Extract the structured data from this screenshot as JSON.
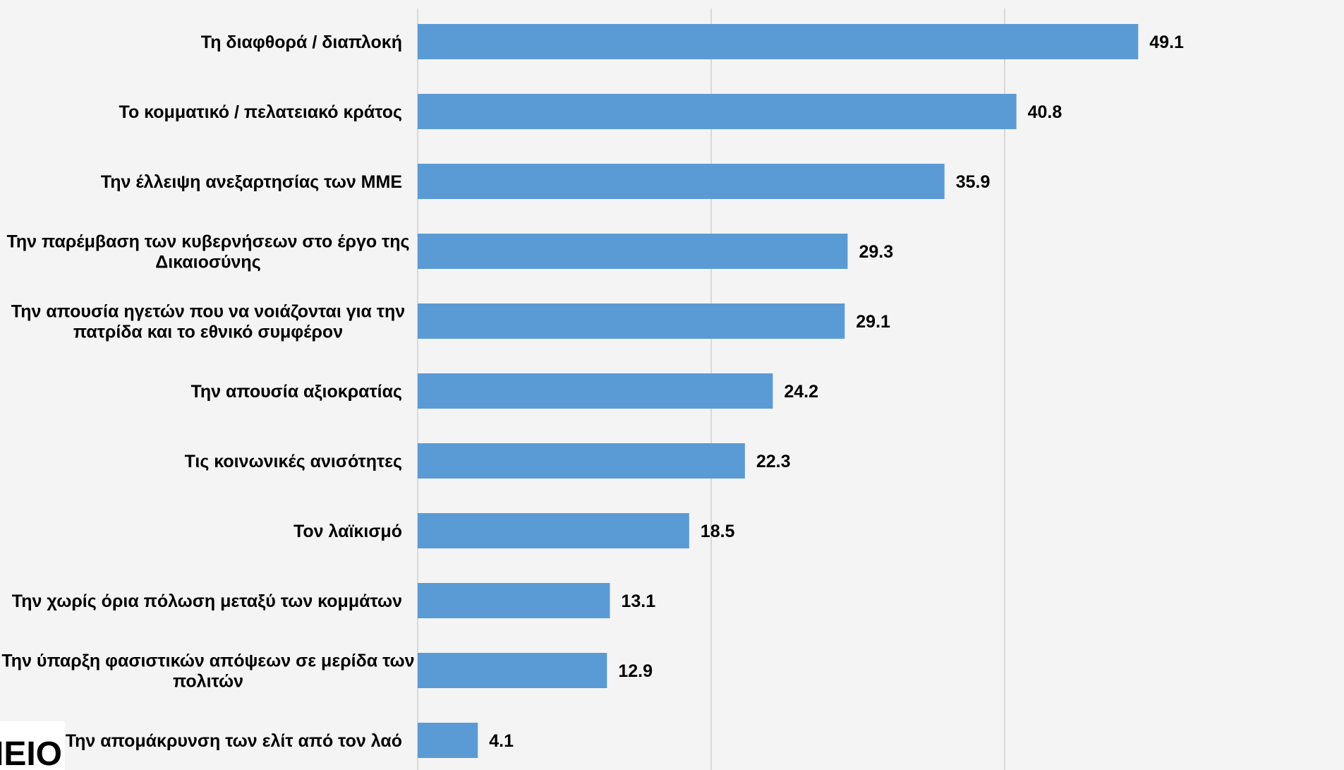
{
  "colors": {
    "background": "#f4f4f4",
    "bar": "#5b9bd5",
    "grid": "#d9d9d9",
    "text": "#000000",
    "logo_bg": "#ffffff",
    "logo_text": "#4a4a4a"
  },
  "logo": {
    "text": "ΜΕΙΟ"
  },
  "chart_data": {
    "type": "bar",
    "orientation": "horizontal",
    "categories": [
      "Τη διαφθορά / διαπλοκή",
      "Το κομματικό / πελατειακό κράτος",
      "Την έλλειψη ανεξαρτησίας των ΜΜΕ",
      "Την παρέμβαση των κυβερνήσεων στο έργο της Δικαιοσύνης",
      "Την απουσία ηγετών που να νοιάζονται για την πατρίδα και το εθνικό συμφέρον",
      "Την απουσία αξιοκρατίας",
      "Τις κοινωνικές ανισότητες",
      "Τον λαϊκισμό",
      "Την χωρίς όρια πόλωση μεταξύ των κομμάτων",
      "Την ύπαρξη φασιστικών απόψεων σε μερίδα των πολιτών",
      "Την απομάκρυνση των ελίτ από τον λαό"
    ],
    "category_lines": [
      [
        "Τη διαφθορά / διαπλοκή"
      ],
      [
        "Το κομματικό / πελατειακό κράτος"
      ],
      [
        "Την έλλειψη ανεξαρτησίας των ΜΜΕ"
      ],
      [
        "Την παρέμβαση των κυβερνήσεων στο έργο της",
        "Δικαιοσύνης"
      ],
      [
        "Την απουσία ηγετών που να νοιάζονται για την",
        "πατρίδα και το εθνικό συμφέρον"
      ],
      [
        "Την απουσία αξιοκρατίας"
      ],
      [
        "Τις κοινωνικές ανισότητες"
      ],
      [
        "Τον λαϊκισμό"
      ],
      [
        "Την χωρίς όρια πόλωση μεταξύ των κομμάτων"
      ],
      [
        "Την ύπαρξη φασιστικών απόψεων σε μερίδα των",
        "πολιτών"
      ],
      [
        "Την απομάκρυνση των ελίτ από τον λαό"
      ]
    ],
    "values": [
      49.1,
      40.8,
      35.9,
      29.3,
      29.1,
      24.2,
      22.3,
      18.5,
      13.1,
      12.9,
      4.1
    ],
    "value_labels": [
      "49.1",
      "40.8",
      "35.9",
      "29.3",
      "29.1",
      "24.2",
      "22.3",
      "18.5",
      "13.1",
      "12.9",
      "4.1"
    ],
    "xlim": [
      0,
      60
    ],
    "gridlines_at": [
      0,
      20,
      40
    ],
    "grid": true,
    "legend": "none",
    "title": "",
    "xlabel": "",
    "ylabel": ""
  }
}
